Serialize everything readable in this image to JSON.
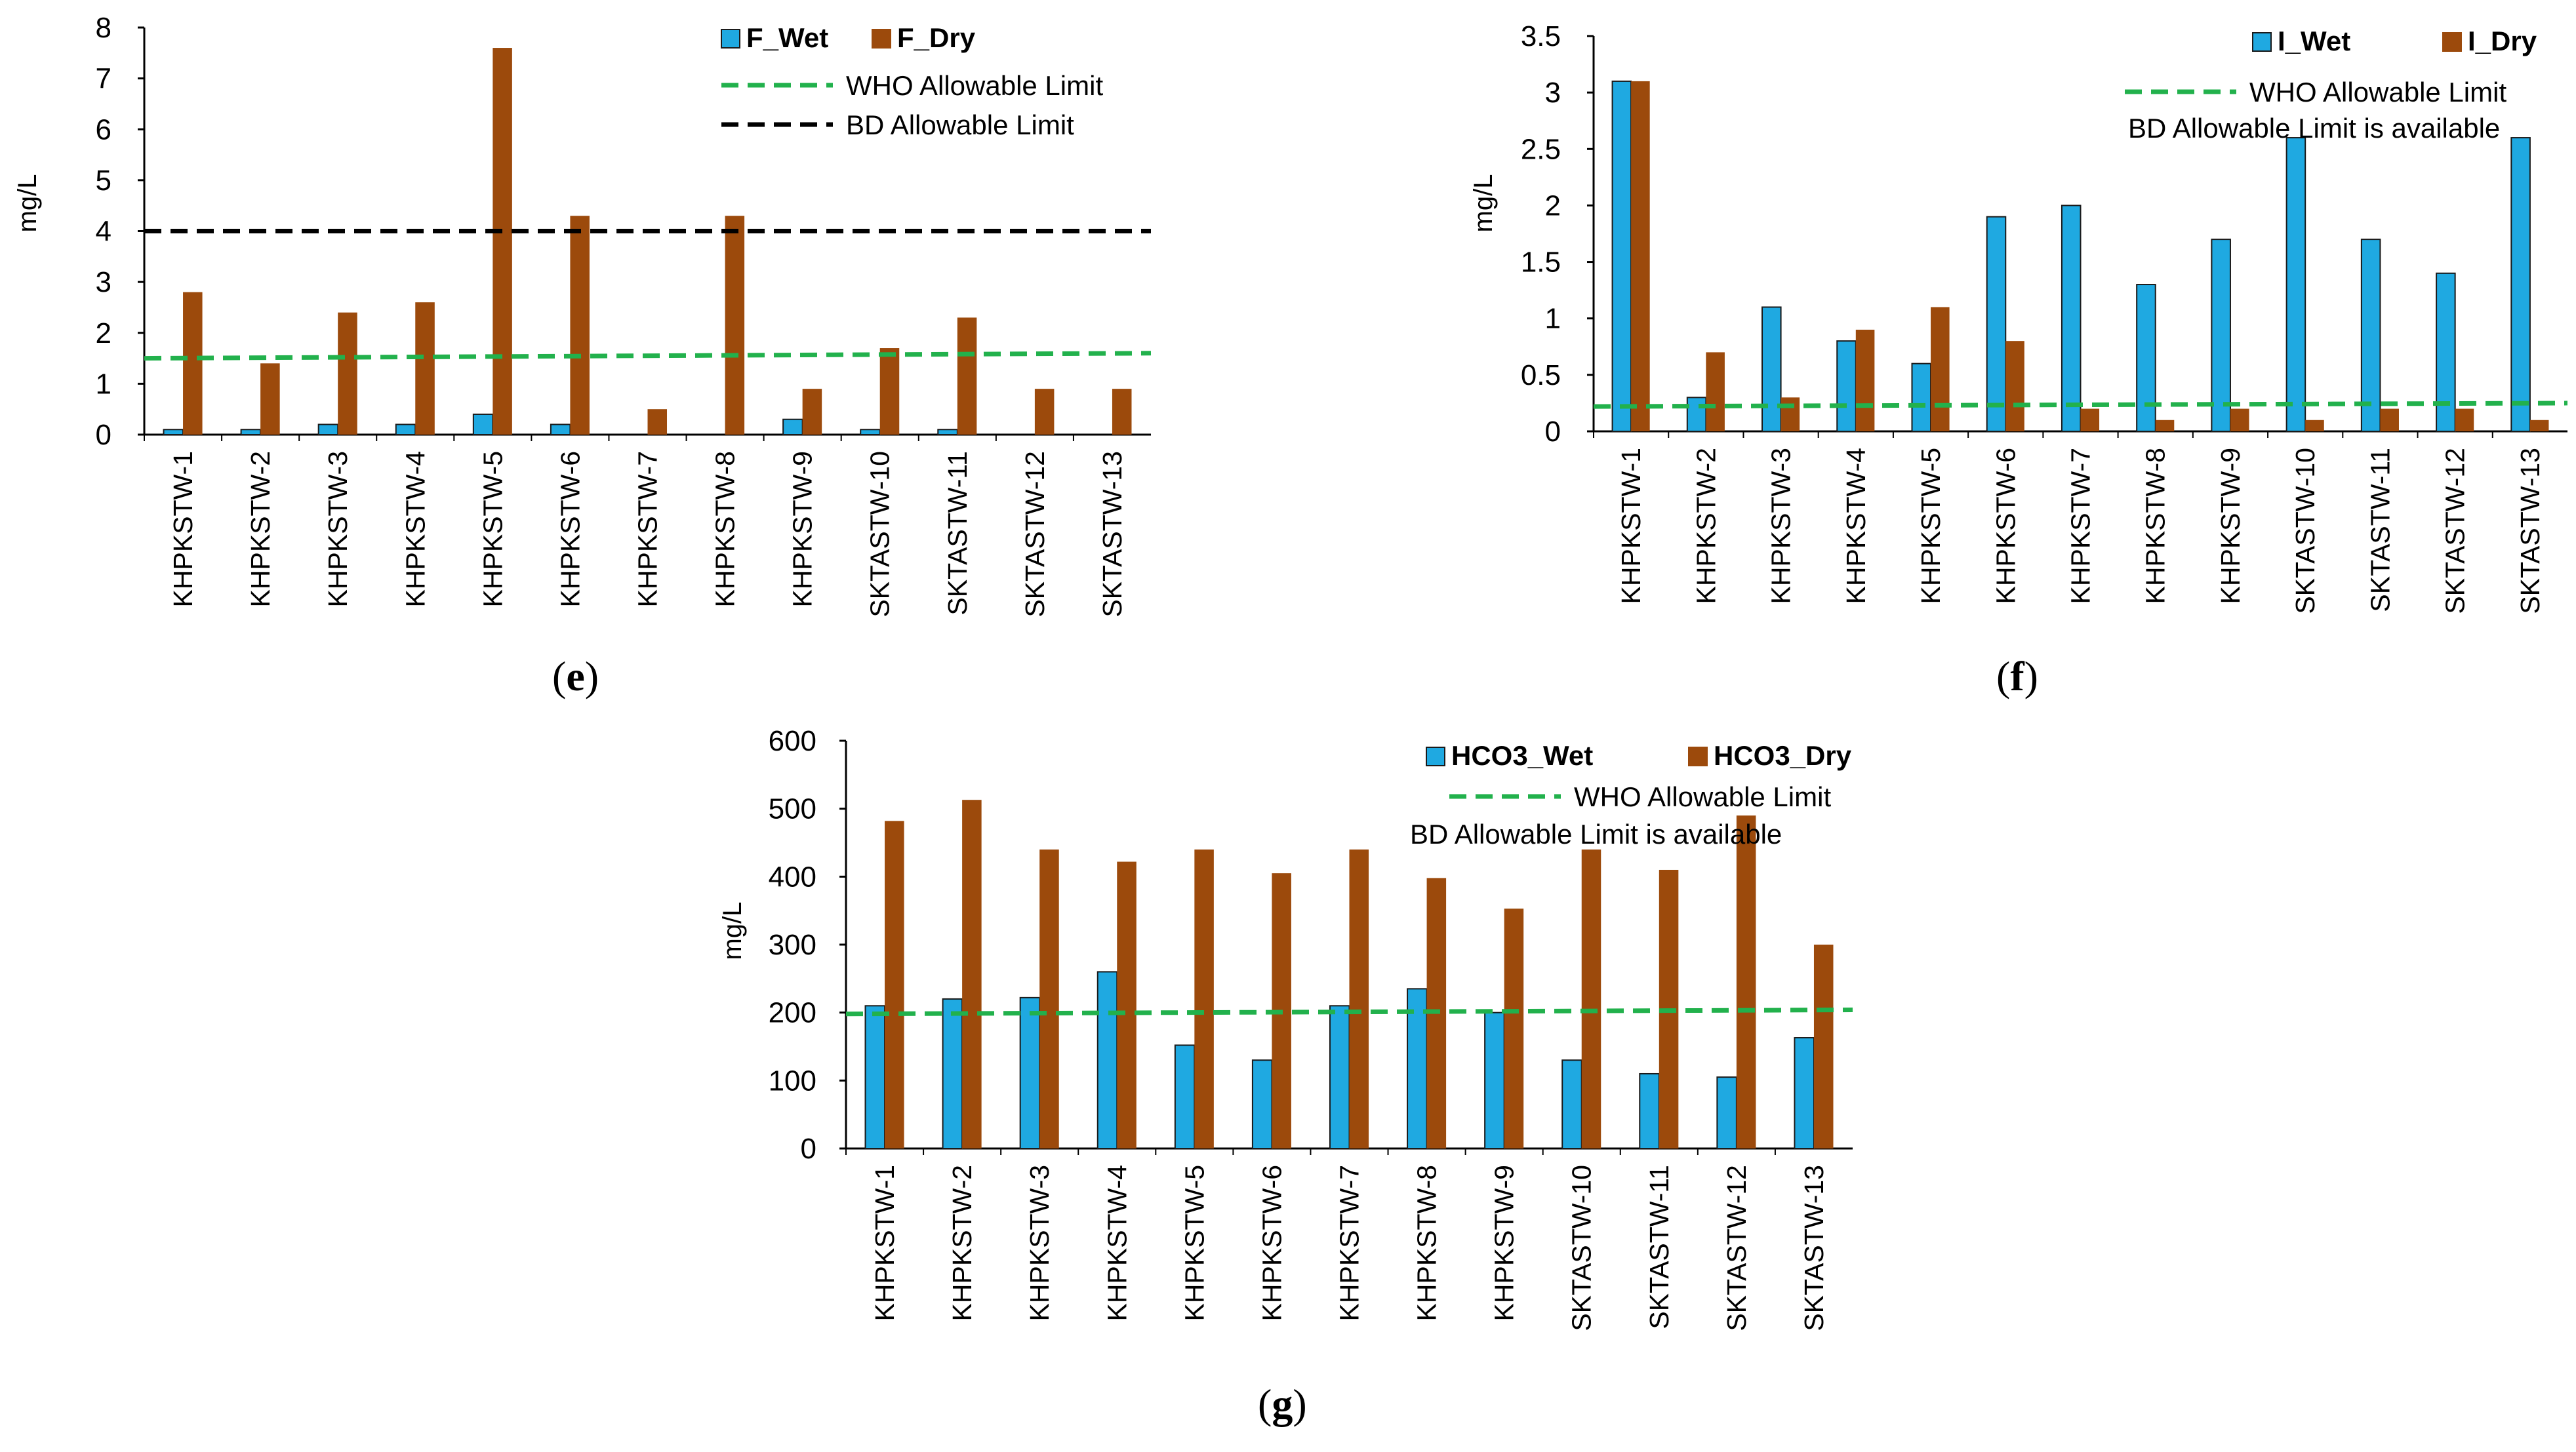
{
  "chart_data": [
    {
      "id": "e",
      "type": "bar",
      "caption": "e",
      "ylabel": "mg/L",
      "ylim": [
        0,
        8
      ],
      "yticks": [
        0,
        1,
        2,
        3,
        4,
        5,
        6,
        7,
        8
      ],
      "categories": [
        "KHPKSTW-1",
        "KHPKSTW-2",
        "KHPKSTW-3",
        "KHPKSTW-4",
        "KHPKSTW-5",
        "KHPKSTW-6",
        "KHPKSTW-7",
        "KHPKSTW-8",
        "KHPKSTW-9",
        "SKTASTW-10",
        "SKTASTW-11",
        "SKTASTW-12",
        "SKTASTW-13"
      ],
      "series": [
        {
          "name": "F_Wet",
          "color": "#1fa9e1",
          "values": [
            0.1,
            0.1,
            0.2,
            0.2,
            0.4,
            0.2,
            0,
            0,
            0.3,
            0.1,
            0.1,
            0,
            0
          ]
        },
        {
          "name": "F_Dry",
          "color": "#9c4a0c",
          "values": [
            2.8,
            1.4,
            2.4,
            2.6,
            7.6,
            4.3,
            0.5,
            4.3,
            0.9,
            1.7,
            2.3,
            0.9,
            0.9
          ]
        }
      ],
      "lines": [
        {
          "name": "WHO Allowable  Limit",
          "color": "#22b14c",
          "value_start": 1.5,
          "value_end": 1.6
        },
        {
          "name": "BD Allowable  Limit",
          "color": "#000000",
          "value_start": 4.0,
          "value_end": 4.0
        }
      ]
    },
    {
      "id": "f",
      "type": "bar",
      "caption": "f",
      "ylabel": "mg/L",
      "ylim": [
        0,
        3.5
      ],
      "yticks": [
        0,
        0.5,
        1,
        1.5,
        2,
        2.5,
        3,
        3.5
      ],
      "categories": [
        "KHPKSTW-1",
        "KHPKSTW-2",
        "KHPKSTW-3",
        "KHPKSTW-4",
        "KHPKSTW-5",
        "KHPKSTW-6",
        "KHPKSTW-7",
        "KHPKSTW-8",
        "KHPKSTW-9",
        "SKTASTW-10",
        "SKTASTW-11",
        "SKTASTW-12",
        "SKTASTW-13"
      ],
      "series": [
        {
          "name": "I_Wet",
          "color": "#1fa9e1",
          "values": [
            3.1,
            0.3,
            1.1,
            0.8,
            0.6,
            1.9,
            2.0,
            1.3,
            1.7,
            2.6,
            1.7,
            1.4,
            2.6
          ]
        },
        {
          "name": "I_Dry",
          "color": "#9c4a0c",
          "values": [
            3.1,
            0.7,
            0.3,
            0.9,
            1.1,
            0.8,
            0.2,
            0.1,
            0.2,
            0.1,
            0.2,
            0.2,
            0.1
          ]
        }
      ],
      "lines": [
        {
          "name": "WHO Allowable  Limit",
          "color": "#22b14c",
          "value_start": 0.22,
          "value_end": 0.25
        }
      ],
      "note": "BD Allowable  Limit is available"
    },
    {
      "id": "g",
      "type": "bar",
      "caption": "g",
      "ylabel": "mg/L",
      "ylim": [
        0,
        600
      ],
      "yticks": [
        0,
        100,
        200,
        300,
        400,
        500,
        600
      ],
      "categories": [
        "KHPKSTW-1",
        "KHPKSTW-2",
        "KHPKSTW-3",
        "KHPKSTW-4",
        "KHPKSTW-5",
        "KHPKSTW-6",
        "KHPKSTW-7",
        "KHPKSTW-8",
        "KHPKSTW-9",
        "SKTASTW-10",
        "SKTASTW-11",
        "SKTASTW-12",
        "SKTASTW-13"
      ],
      "series": [
        {
          "name": "HCO3_Wet",
          "color": "#1fa9e1",
          "values": [
            210,
            220,
            222,
            260,
            152,
            130,
            210,
            235,
            200,
            130,
            110,
            105,
            163
          ]
        },
        {
          "name": "HCO3_Dry",
          "color": "#9c4a0c",
          "values": [
            482,
            513,
            440,
            422,
            440,
            405,
            440,
            398,
            353,
            440,
            410,
            490,
            300
          ]
        }
      ],
      "lines": [
        {
          "name": "WHO Allowable  Limit",
          "color": "#22b14c",
          "value_start": 198,
          "value_end": 204
        }
      ],
      "note": "BD Allowable  Limit is available"
    }
  ]
}
